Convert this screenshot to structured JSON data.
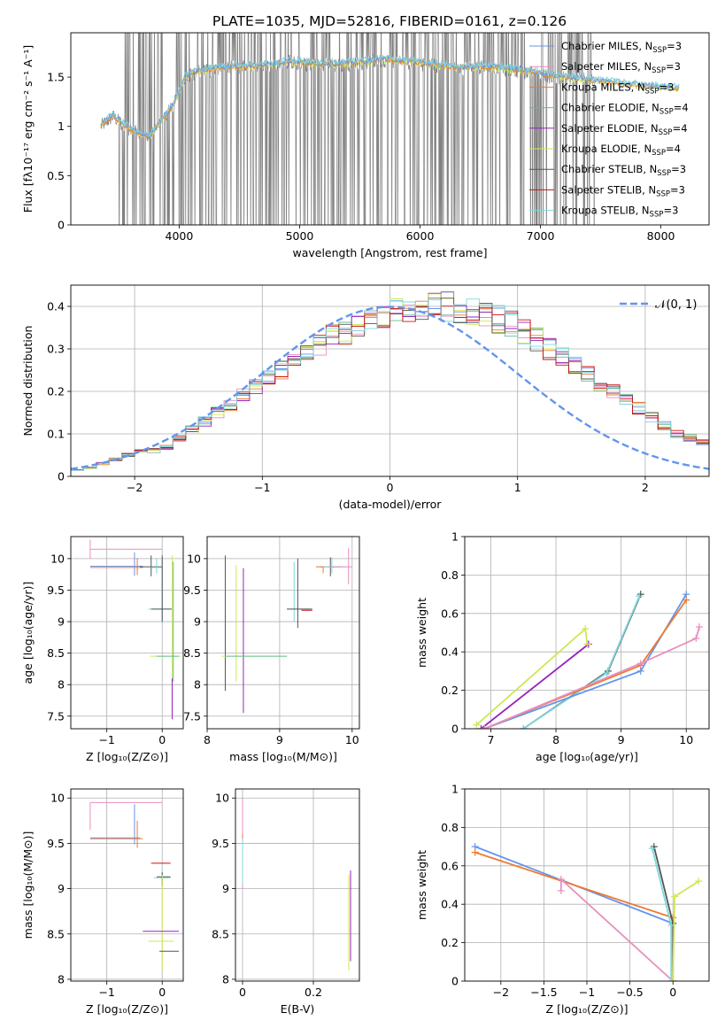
{
  "title": "PLATE=1035, MJD=52816, FIBERID=0161, z=0.126",
  "colors": {
    "chabrier_miles": "#6495ed",
    "salpeter_miles": "#e88fbe",
    "kroupa_miles": "#ee7a30",
    "chabrier_elodie": "#66bb99",
    "salpeter_elodie": "#9922bb",
    "kroupa_elodie": "#cde853",
    "chabrier_stelib": "#555555",
    "salpeter_stelib": "#cc1111",
    "kroupa_stelib": "#7fd8dd",
    "data": "#808080",
    "normal": "#6495ed"
  },
  "legend_spectrum": [
    {
      "pre": "Chabrier MILES, N",
      "sub": "SSP",
      "post": "=3",
      "color": "chabrier_miles"
    },
    {
      "pre": "Salpeter MILES, N",
      "sub": "SSP",
      "post": "=3",
      "color": "salpeter_miles"
    },
    {
      "pre": "Kroupa MILES, N",
      "sub": "SSP",
      "post": "=3",
      "color": "kroupa_miles"
    },
    {
      "pre": "Chabrier ELODIE, N",
      "sub": "SSP",
      "post": "=4",
      "color": "chabrier_elodie"
    },
    {
      "pre": "Salpeter ELODIE, N",
      "sub": "SSP",
      "post": "=4",
      "color": "salpeter_elodie"
    },
    {
      "pre": "Kroupa ELODIE, N",
      "sub": "SSP",
      "post": "=4",
      "color": "kroupa_elodie"
    },
    {
      "pre": "Chabrier STELIB, N",
      "sub": "SSP",
      "post": "=3",
      "color": "chabrier_stelib"
    },
    {
      "pre": "Salpeter STELIB, N",
      "sub": "SSP",
      "post": "=3",
      "color": "salpeter_stelib"
    },
    {
      "pre": "Kroupa STELIB, N",
      "sub": "SSP",
      "post": "=3",
      "color": "kroupa_stelib"
    }
  ],
  "legend_hist": "𝒩(0, 1)",
  "chart_data": [
    {
      "id": "spectrum",
      "type": "line",
      "xlabel": "wavelength [Angstrom, rest frame]",
      "ylabel": "Flux [fλ10⁻¹⁷ erg cm⁻² s⁻¹ A⁻¹]",
      "xlim": [
        3100,
        8400
      ],
      "ylim": [
        0,
        1.95
      ],
      "xticks": [
        4000,
        5000,
        6000,
        7000,
        8000
      ],
      "yticks": [
        0.0,
        0.5,
        1.0,
        1.5
      ],
      "model_continuum": {
        "x": [
          3350,
          3450,
          3550,
          3650,
          3750,
          3850,
          3950,
          4050,
          4150,
          4300,
          4450,
          4600,
          4800,
          4900,
          5100,
          5300,
          5500,
          5700,
          5900,
          6100,
          6300,
          6500,
          6700,
          6900,
          7100,
          7300,
          7500,
          7700,
          7900,
          8100
        ],
        "y": [
          1.0,
          1.1,
          1.0,
          0.93,
          0.88,
          1.05,
          1.2,
          1.5,
          1.55,
          1.58,
          1.6,
          1.6,
          1.62,
          1.65,
          1.63,
          1.62,
          1.64,
          1.67,
          1.65,
          1.62,
          1.58,
          1.6,
          1.58,
          1.55,
          1.5,
          1.48,
          1.45,
          1.42,
          1.4,
          1.38
        ]
      }
    },
    {
      "id": "residuals",
      "type": "histogram",
      "xlabel": "(data-model)/error",
      "ylabel": "Normed distribution",
      "xlim": [
        -2.5,
        2.5
      ],
      "ylim": [
        0,
        0.45
      ],
      "xticks": [
        -2,
        -1,
        0,
        1,
        2
      ],
      "yticks": [
        0.0,
        0.1,
        0.2,
        0.3,
        0.4
      ],
      "bin_width": 0.1,
      "bin_start": -2.5,
      "base_values": [
        0.015,
        0.02,
        0.03,
        0.04,
        0.05,
        0.06,
        0.06,
        0.07,
        0.09,
        0.11,
        0.13,
        0.15,
        0.17,
        0.19,
        0.21,
        0.23,
        0.25,
        0.27,
        0.29,
        0.31,
        0.33,
        0.34,
        0.36,
        0.37,
        0.38,
        0.39,
        0.39,
        0.39,
        0.4,
        0.4,
        0.395,
        0.39,
        0.38,
        0.37,
        0.36,
        0.34,
        0.32,
        0.3,
        0.28,
        0.26,
        0.24,
        0.22,
        0.2,
        0.18,
        0.16,
        0.14,
        0.12,
        0.1,
        0.09,
        0.08
      ]
    },
    {
      "id": "age_vs_Z",
      "type": "errorbar",
      "xlabel": "Z [log₁₀(Z/Z⊙)]",
      "ylabel": "age  [log₁₀(age/yr)]",
      "xlim": [
        -1.65,
        0.38
      ],
      "ylim": [
        7.3,
        10.35
      ],
      "xticks": [
        -1,
        0
      ],
      "yticks": [
        7.5,
        8.0,
        8.5,
        9.0,
        9.5,
        10.0
      ],
      "points": [
        {
          "x": -1.3,
          "xerr": [
            0.0,
            1.3
          ],
          "y": 10.15,
          "yerr": [
            0.15,
            0.15
          ],
          "color": "salpeter_miles"
        },
        {
          "x": -0.5,
          "xerr": [
            0.8,
            0.15
          ],
          "y": 9.88,
          "yerr": [
            0.15,
            0.22
          ],
          "color": "chabrier_miles"
        },
        {
          "x": -0.45,
          "xerr": [
            0.85,
            0.1
          ],
          "y": 9.86,
          "yerr": [
            0.12,
            0.15
          ],
          "color": "kroupa_miles"
        },
        {
          "x": -0.2,
          "xerr": [
            0.2,
            0.2
          ],
          "y": 9.87,
          "yerr": [
            0.15,
            0.18
          ],
          "color": "chabrier_stelib"
        },
        {
          "x": -0.1,
          "xerr": [
            0.1,
            0.1
          ],
          "y": 9.86,
          "yerr": [
            0.1,
            0.15
          ],
          "color": "kroupa_stelib"
        },
        {
          "x": 0.0,
          "xerr": [
            0.25,
            0.15
          ],
          "y": 9.2,
          "yerr": [
            0.25,
            0.8
          ],
          "color": "kroupa_stelib"
        },
        {
          "x": 0.0,
          "xerr": [
            0.2,
            0.18
          ],
          "y": 9.2,
          "yerr": [
            0.2,
            0.85
          ],
          "color": "chabrier_stelib"
        },
        {
          "x": 0.18,
          "xerr": [
            0.4,
            0.15
          ],
          "y": 8.45,
          "yerr": [
            0.6,
            1.6
          ],
          "color": "kroupa_elodie"
        },
        {
          "x": 0.2,
          "xerr": [
            0.3,
            0.1
          ],
          "y": 8.45,
          "yerr": [
            0.4,
            1.5
          ],
          "color": "chabrier_elodie"
        },
        {
          "x": 0.18,
          "xerr": [
            0.0,
            0.0
          ],
          "y": 7.8,
          "yerr": [
            0.35,
            0.3
          ],
          "color": "salpeter_elodie"
        }
      ]
    },
    {
      "id": "age_vs_mass",
      "type": "errorbar",
      "xlabel": "mass [log₁₀(M/M⊙)]",
      "ylabel": "",
      "xlim": [
        8.0,
        10.1
      ],
      "ylim": [
        7.3,
        10.35
      ],
      "xticks": [
        8,
        9,
        10
      ],
      "yticks": [
        7.5,
        8.0,
        8.5,
        9.0,
        9.5,
        10.0
      ],
      "points": [
        {
          "x": 8.25,
          "xerr": [
            0.0,
            0.0
          ],
          "y": 9.0,
          "yerr": [
            1.1,
            1.05
          ],
          "color": "chabrier_stelib"
        },
        {
          "x": 8.5,
          "xerr": [
            0.0,
            0.0
          ],
          "y": 8.5,
          "yerr": [
            0.95,
            1.35
          ],
          "color": "salpeter_elodie"
        },
        {
          "x": 8.4,
          "xerr": [
            0.2,
            0.7
          ],
          "y": 8.45,
          "yerr": [
            0.4,
            1.45
          ],
          "color": "kroupa_elodie"
        },
        {
          "x": 8.55,
          "xerr": [
            0.3,
            0.55
          ],
          "y": 8.45,
          "yerr": [
            0.0,
            0.0
          ],
          "color": "chabrier_elodie"
        },
        {
          "x": 9.2,
          "xerr": [
            0.1,
            0.2
          ],
          "y": 9.2,
          "yerr": [
            0.2,
            0.75
          ],
          "color": "kroupa_stelib"
        },
        {
          "x": 9.25,
          "xerr": [
            0.15,
            0.2
          ],
          "y": 9.2,
          "yerr": [
            0.3,
            0.8
          ],
          "color": "chabrier_stelib"
        },
        {
          "x": 9.3,
          "xerr": [
            0.0,
            0.15
          ],
          "y": 9.18,
          "yerr": [
            0.0,
            0.0
          ],
          "color": "salpeter_stelib"
        },
        {
          "x": 9.7,
          "xerr": [
            0.15,
            0.15
          ],
          "y": 9.87,
          "yerr": [
            0.15,
            0.15
          ],
          "color": "chabrier_stelib"
        },
        {
          "x": 9.72,
          "xerr": [
            0.15,
            0.2
          ],
          "y": 9.87,
          "yerr": [
            0.1,
            0.15
          ],
          "color": "kroupa_stelib"
        },
        {
          "x": 9.95,
          "xerr": [
            0.25,
            0.05
          ],
          "y": 9.87,
          "yerr": [
            0.28,
            0.3
          ],
          "color": "salpeter_miles"
        },
        {
          "x": 9.6,
          "xerr": [
            0.1,
            0.0
          ],
          "y": 9.87,
          "yerr": [
            0.1,
            0.0
          ],
          "color": "kroupa_miles"
        }
      ]
    },
    {
      "id": "weight_vs_age",
      "type": "line",
      "xlabel": "age  [log₁₀(age/yr)]",
      "ylabel": "mass weight",
      "xlim": [
        6.6,
        10.35
      ],
      "ylim": [
        0,
        1.0
      ],
      "xticks": [
        7,
        8,
        9,
        10
      ],
      "yticks": [
        0.0,
        0.2,
        0.4,
        0.6,
        0.8,
        1.0
      ],
      "series": [
        {
          "x": [
            6.85,
            8.5
          ],
          "y": [
            0.0,
            0.44
          ],
          "color": "salpeter_elodie"
        },
        {
          "x": [
            6.78,
            8.45,
            8.48
          ],
          "y": [
            0.02,
            0.52,
            0.44
          ],
          "color": "kroupa_elodie"
        },
        {
          "x": [
            7.5,
            8.8,
            9.3
          ],
          "y": [
            0.0,
            0.3,
            0.7
          ],
          "color": "chabrier_stelib"
        },
        {
          "x": [
            7.5,
            8.78,
            9.28
          ],
          "y": [
            0.0,
            0.29,
            0.69
          ],
          "color": "kroupa_stelib"
        },
        {
          "x": [
            6.9,
            9.3,
            10.0
          ],
          "y": [
            0.0,
            0.3,
            0.7
          ],
          "color": "chabrier_miles"
        },
        {
          "x": [
            6.9,
            9.3,
            10.0
          ],
          "y": [
            0.0,
            0.33,
            0.67
          ],
          "color": "kroupa_miles"
        },
        {
          "x": [
            6.9,
            9.3,
            10.15,
            10.2
          ],
          "y": [
            0.0,
            0.34,
            0.47,
            0.53
          ],
          "color": "salpeter_miles"
        }
      ]
    },
    {
      "id": "mass_vs_Z",
      "type": "errorbar",
      "xlabel": "Z [log₁₀(Z/Z⊙)]",
      "ylabel": "mass [log₁₀(M/M⊙)]",
      "xlim": [
        -1.65,
        0.38
      ],
      "ylim": [
        7.98,
        10.1
      ],
      "xticks": [
        -1,
        0
      ],
      "yticks": [
        8.0,
        8.5,
        9.0,
        9.5,
        10.0
      ],
      "points": [
        {
          "x": -1.3,
          "xerr": [
            0.0,
            1.3
          ],
          "y": 9.95,
          "yerr": [
            0.3,
            0.0
          ],
          "color": "salpeter_miles"
        },
        {
          "x": -0.5,
          "xerr": [
            0.8,
            0.1
          ],
          "y": 9.56,
          "yerr": [
            0.07,
            0.37
          ],
          "color": "chabrier_miles"
        },
        {
          "x": -0.45,
          "xerr": [
            0.85,
            0.1
          ],
          "y": 9.55,
          "yerr": [
            0.1,
            0.2
          ],
          "color": "kroupa_miles"
        },
        {
          "x": 0.0,
          "xerr": [
            0.2,
            0.15
          ],
          "y": 9.28,
          "yerr": [
            0.0,
            0.0
          ],
          "color": "salpeter_stelib"
        },
        {
          "x": 0.0,
          "xerr": [
            0.15,
            0.15
          ],
          "y": 9.12,
          "yerr": [
            0.1,
            0.1
          ],
          "color": "kroupa_stelib"
        },
        {
          "x": 0.0,
          "xerr": [
            0.1,
            0.15
          ],
          "y": 9.13,
          "yerr": [
            0.1,
            0.05
          ],
          "color": "chabrier_stelib"
        },
        {
          "x": 0.0,
          "xerr": [
            0.0,
            0.0
          ],
          "y": 8.7,
          "yerr": [
            0.6,
            0.45
          ],
          "color": "kroupa_elodie"
        },
        {
          "x": -0.05,
          "xerr": [
            0.3,
            0.35
          ],
          "y": 8.53,
          "yerr": [
            0.0,
            0.0
          ],
          "color": "salpeter_elodie"
        },
        {
          "x": -0.05,
          "xerr": [
            0.2,
            0.25
          ],
          "y": 8.42,
          "yerr": [
            0.0,
            0.0
          ],
          "color": "kroupa_elodie"
        },
        {
          "x": 0.05,
          "xerr": [
            0.1,
            0.25
          ],
          "y": 8.31,
          "yerr": [
            0.0,
            0.0
          ],
          "color": "chabrier_stelib"
        }
      ]
    },
    {
      "id": "mass_vs_ebv",
      "type": "errorbar",
      "xlabel": "E(B-V)",
      "ylabel": "",
      "xlim": [
        -0.02,
        0.33
      ],
      "ylim": [
        7.98,
        10.1
      ],
      "xticks": [
        0.0,
        0.2
      ],
      "yticks": [
        8.0,
        8.5,
        9.0,
        9.5,
        10.0
      ],
      "points": [
        {
          "x": 0.0,
          "xerr": [
            0.0,
            0.0
          ],
          "y": 9.95,
          "yerr": [
            0.95,
            0.05
          ],
          "color": "salpeter_miles"
        },
        {
          "x": 0.0,
          "xerr": [
            0.0,
            0.0
          ],
          "y": 9.5,
          "yerr": [
            0.1,
            0.1
          ],
          "color": "kroupa_miles"
        },
        {
          "x": 0.0,
          "xerr": [
            0.0,
            0.0
          ],
          "y": 9.4,
          "yerr": [
            0.35,
            0.15
          ],
          "color": "kroupa_stelib"
        },
        {
          "x": 0.3,
          "xerr": [
            0.0,
            0.0
          ],
          "y": 8.7,
          "yerr": [
            0.6,
            0.45
          ],
          "color": "kroupa_elodie"
        },
        {
          "x": 0.305,
          "xerr": [
            0.0,
            0.0
          ],
          "y": 8.7,
          "yerr": [
            0.5,
            0.5
          ],
          "color": "salpeter_elodie"
        }
      ]
    },
    {
      "id": "weight_vs_Z",
      "type": "line",
      "xlabel": "Z [log₁₀(Z/Z⊙)]",
      "ylabel": "mass weight",
      "xlim": [
        -2.42,
        0.42
      ],
      "ylim": [
        0,
        1.0
      ],
      "xticks": [
        -2.0,
        -1.5,
        -1.0,
        -0.5,
        0.0
      ],
      "yticks": [
        0.0,
        0.2,
        0.4,
        0.6,
        0.8,
        1.0
      ],
      "series": [
        {
          "x": [
            -2.3,
            0.0
          ],
          "y": [
            0.7,
            0.3
          ],
          "color": "chabrier_miles"
        },
        {
          "x": [
            -2.3,
            0.0
          ],
          "y": [
            0.67,
            0.33
          ],
          "color": "kroupa_miles"
        },
        {
          "x": [
            -1.3,
            -1.3,
            0.0
          ],
          "y": [
            0.47,
            0.53,
            0.0
          ],
          "color": "salpeter_miles"
        },
        {
          "x": [
            -0.22,
            0.0,
            0.0
          ],
          "y": [
            0.7,
            0.3,
            0.0
          ],
          "color": "chabrier_stelib"
        },
        {
          "x": [
            -0.24,
            -0.02,
            -0.02
          ],
          "y": [
            0.69,
            0.29,
            0.0
          ],
          "color": "kroupa_stelib"
        },
        {
          "x": [
            0.0,
            0.02,
            0.3
          ],
          "y": [
            0.0,
            0.44,
            0.52
          ],
          "color": "kroupa_elodie"
        }
      ]
    }
  ]
}
